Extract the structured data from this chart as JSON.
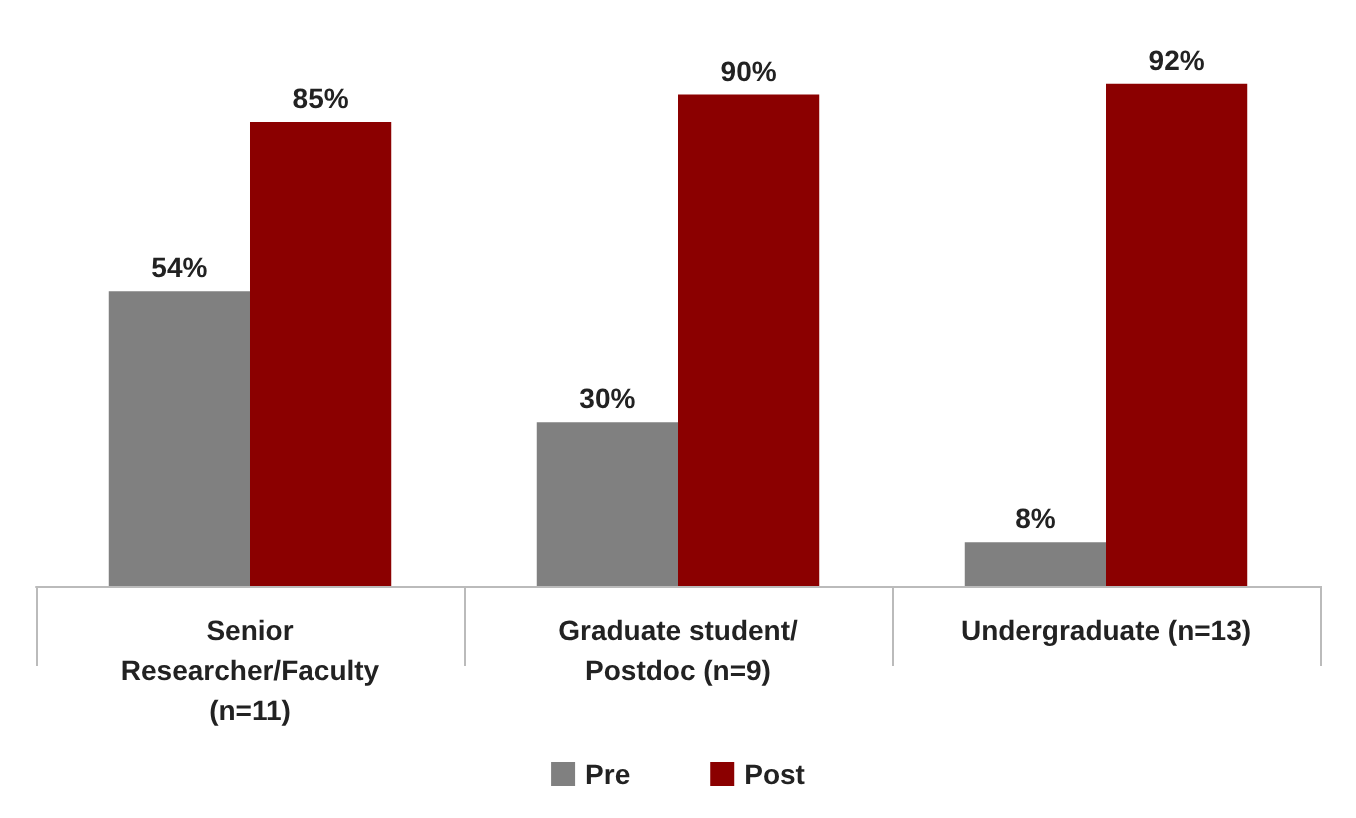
{
  "chart_data": {
    "type": "bar",
    "categories": [
      "Senior\nResearcher/Faculty\n(n=11)",
      "Graduate student/\nPostdoc (n=9)",
      "Undergraduate (n=13)"
    ],
    "series": [
      {
        "name": "Pre",
        "color": "#808080",
        "values": [
          54,
          30,
          8
        ],
        "value_labels": [
          "54%",
          "30%",
          "8%"
        ]
      },
      {
        "name": "Post",
        "color": "#8b0000",
        "values": [
          85,
          90,
          92
        ],
        "value_labels": [
          "85%",
          "90%",
          "92%"
        ]
      }
    ],
    "legend": "bottom"
  }
}
